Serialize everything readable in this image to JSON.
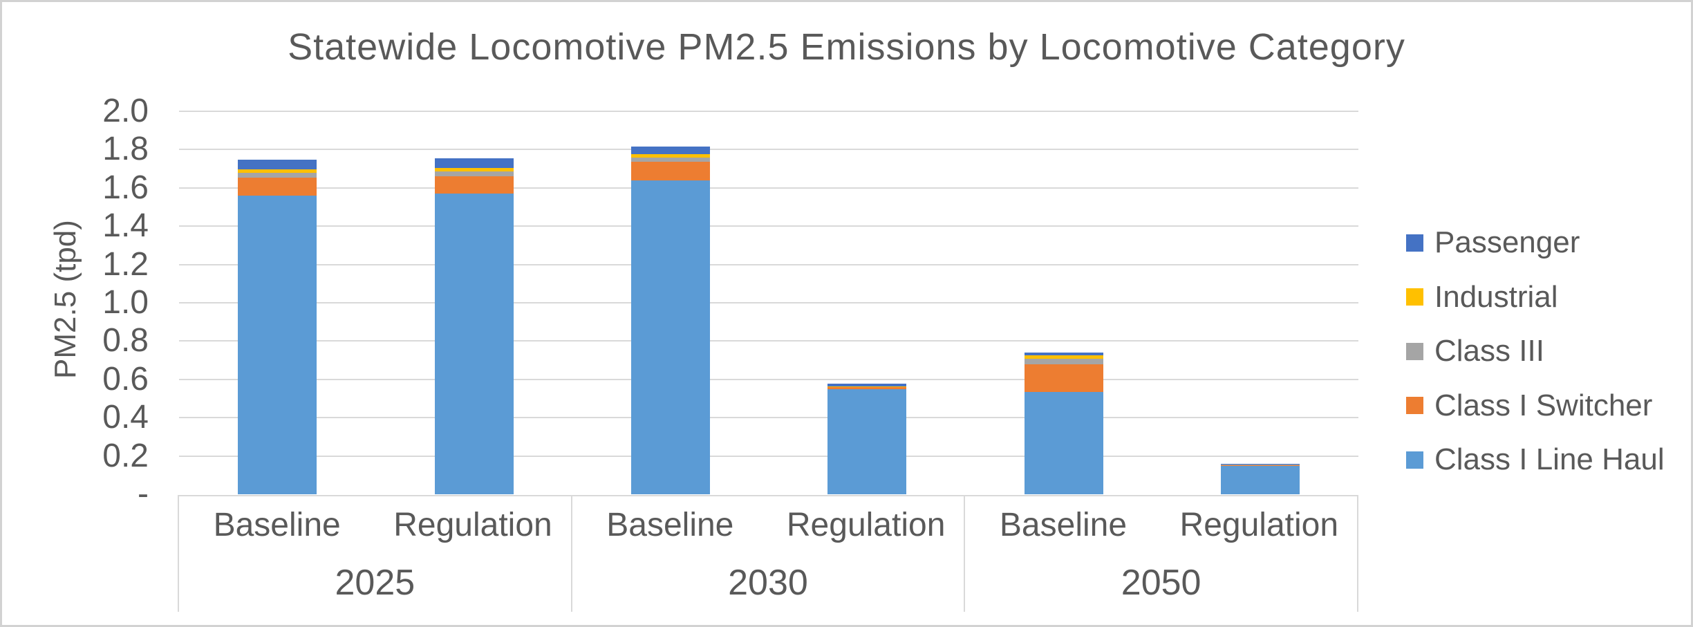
{
  "figure": {
    "title": "Statewide Locomotive PM2.5 Emissions by Locomotive Category"
  },
  "y_axis": {
    "label": "PM2.5 (tpd)",
    "tick_labels": [
      "2.0",
      "1.8",
      "1.6",
      "1.4",
      "1.2",
      "1.0",
      "0.8",
      "0.6",
      "0.4",
      "0.2",
      "-"
    ],
    "tick_values": [
      2.0,
      1.8,
      1.6,
      1.4,
      1.2,
      1.0,
      0.8,
      0.6,
      0.4,
      0.2,
      0
    ]
  },
  "x_axis": {
    "groups": [
      "2025",
      "2030",
      "2050"
    ],
    "subcategories": [
      "Baseline",
      "Regulation"
    ]
  },
  "legend": {
    "position": "right",
    "items": [
      {
        "label": "Passenger",
        "color": "#4472C4"
      },
      {
        "label": "Industrial",
        "color": "#FFC000"
      },
      {
        "label": "Class III",
        "color": "#A5A5A5"
      },
      {
        "label": "Class I Switcher",
        "color": "#ED7D31"
      },
      {
        "label": "Class I Line Haul",
        "color": "#5B9BD5"
      }
    ]
  },
  "colors": {
    "text": "#595959",
    "gridline": "#D9D9D9",
    "border": "#D2D2D2"
  },
  "chart_data": {
    "type": "bar",
    "stacked": true,
    "title": "Statewide Locomotive PM2.5 Emissions by Locomotive Category",
    "xlabel": "",
    "ylabel": "PM2.5 (tpd)",
    "ylim": [
      0,
      2.0
    ],
    "grid": true,
    "legend_position": "right",
    "categories": [
      "2025 Baseline",
      "2025 Regulation",
      "2030 Baseline",
      "2030 Regulation",
      "2050 Baseline",
      "2050 Regulation"
    ],
    "series": [
      {
        "name": "Class I Line Haul",
        "color": "#5B9BD5",
        "values": [
          1.56,
          1.57,
          1.64,
          0.55,
          0.535,
          0.148
        ]
      },
      {
        "name": "Class I Switcher",
        "color": "#ED7D31",
        "values": [
          0.095,
          0.09,
          0.095,
          0.008,
          0.145,
          0.005
        ]
      },
      {
        "name": "Class III",
        "color": "#A5A5A5",
        "values": [
          0.025,
          0.027,
          0.024,
          0.004,
          0.026,
          0.004
        ]
      },
      {
        "name": "Industrial",
        "color": "#FFC000",
        "values": [
          0.017,
          0.016,
          0.016,
          0.002,
          0.019,
          0.001
        ]
      },
      {
        "name": "Passenger",
        "color": "#4472C4",
        "values": [
          0.05,
          0.05,
          0.04,
          0.014,
          0.015,
          0.002
        ]
      }
    ],
    "stack_totals": [
      1.75,
      1.75,
      1.81,
      0.58,
      0.74,
      0.16
    ]
  }
}
